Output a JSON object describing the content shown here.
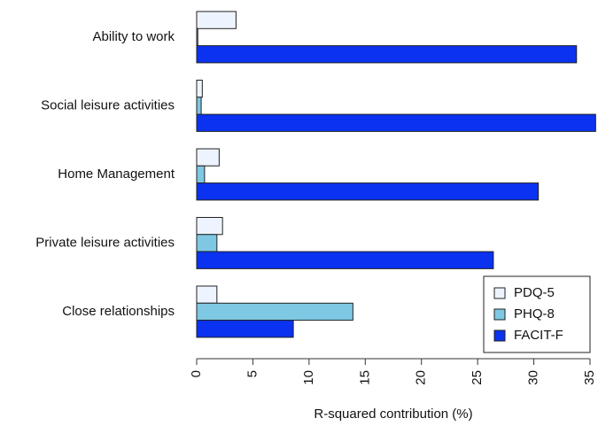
{
  "chart_data": {
    "type": "bar",
    "orientation": "horizontal",
    "xlabel": "R-squared contribution (%)",
    "categories": [
      "Ability to work",
      "Social leisure activities",
      "Home Management",
      "Private leisure activities",
      "Close relationships"
    ],
    "series": [
      {
        "name": "PDQ-5",
        "color": "#eef4ff",
        "values": [
          3.5,
          0.5,
          2.0,
          2.3,
          1.8
        ]
      },
      {
        "name": "PHQ-8",
        "color": "#7ec8e3",
        "values": [
          0.1,
          0.4,
          0.7,
          1.8,
          13.9
        ]
      },
      {
        "name": "FACIT-F",
        "color": "#0a32f0",
        "values": [
          33.8,
          35.5,
          30.4,
          26.4,
          8.6
        ]
      }
    ],
    "xlim": [
      0,
      35
    ],
    "xticks": [
      0,
      5,
      10,
      15,
      20,
      25,
      30,
      35
    ],
    "legend": "bottom-right"
  }
}
